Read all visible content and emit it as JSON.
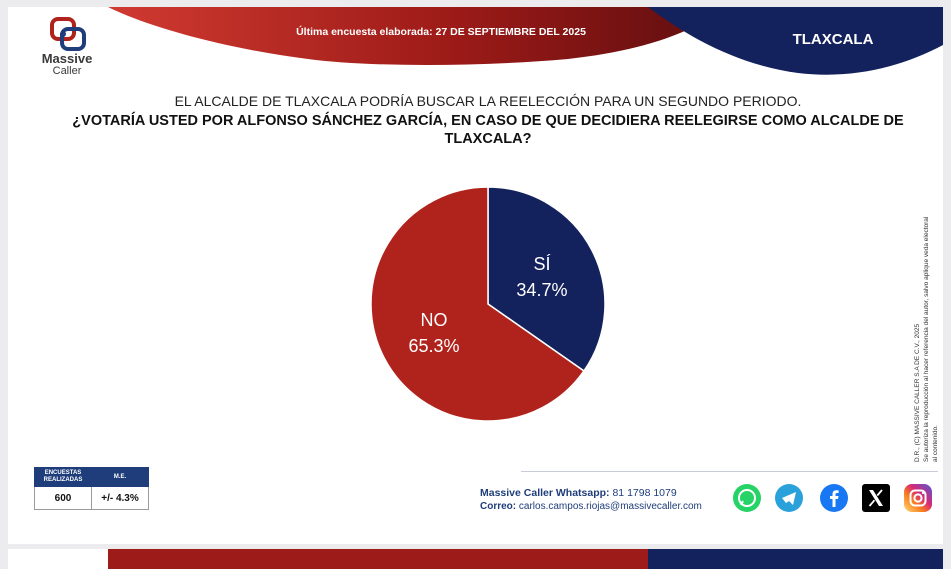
{
  "header": {
    "logo_line1": "Massive",
    "logo_line2": "Caller",
    "last_poll_label": "Última encuesta elaborada:",
    "last_poll_date": "27 DE SEPTIEMBRE DEL 2025",
    "state": "TLAXCALA"
  },
  "question": {
    "subtitle": "EL ALCALDE DE TLAXCALA PODRÍA BUSCAR LA REELECCIÓN PARA UN SEGUNDO PERIODO.",
    "title": "¿VOTARÍA USTED POR ALFONSO SÁNCHEZ GARCÍA, EN CASO DE QUE DECIDIERA REELEGIRSE COMO ALCALDE DE TLAXCALA?"
  },
  "chart_data": {
    "type": "pie",
    "categories": [
      "SÍ",
      "NO"
    ],
    "values": [
      34.7,
      65.3
    ],
    "value_labels": [
      "34.7%",
      "65.3%"
    ],
    "colors": [
      "#13225c",
      "#b0231c"
    ],
    "title": "",
    "legend": "none"
  },
  "legal_note": {
    "line1": "D.R., (C) MASSIVE CALLER S.A DE C.V., 2025",
    "line2": "Se autoriza la reproducción al hacer referencia del autor, salvo aplique veda electoral al contenido."
  },
  "stats": {
    "col1_header": "ENCUESTAS REALIZADAS",
    "col2_header": "M.E.",
    "surveys": "600",
    "margin_error": "+/- 4.3%"
  },
  "contact": {
    "whatsapp_label": "Massive Caller Whatsapp:",
    "whatsapp_number": "81 1798 1079",
    "email_label": "Correo:",
    "email": "carlos.campos.riojas@massivecaller.com"
  },
  "social_icons": [
    "whatsapp-icon",
    "telegram-icon",
    "facebook-icon",
    "x-icon",
    "instagram-icon"
  ],
  "colors": {
    "navy": "#13225c",
    "red": "#b0231c",
    "dark_red": "#7a1414"
  }
}
